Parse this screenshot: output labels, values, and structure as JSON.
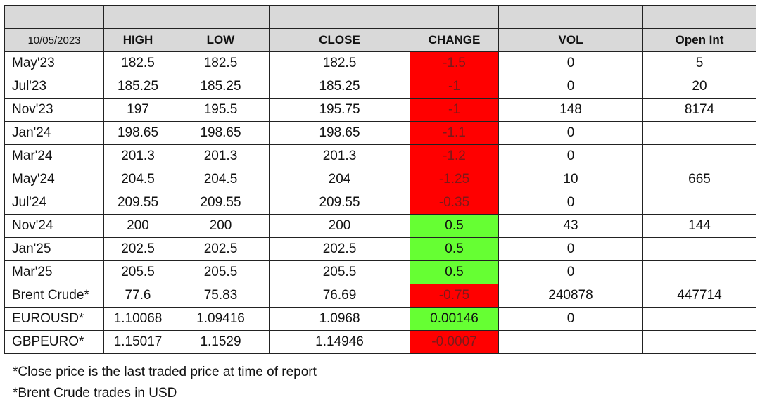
{
  "report": {
    "date": "10/05/2023",
    "headers": {
      "high": "HIGH",
      "low": "LOW",
      "close": "CLOSE",
      "change": "CHANGE",
      "vol": "VOL",
      "open_int": "Open Int"
    },
    "rows": [
      {
        "label": "May'23",
        "high": "182.5",
        "low": "182.5",
        "close": "182.5",
        "change": "-1.5",
        "vol": "0",
        "open_int": "5"
      },
      {
        "label": "Jul'23",
        "high": "185.25",
        "low": "185.25",
        "close": "185.25",
        "change": "-1",
        "vol": "0",
        "open_int": "20"
      },
      {
        "label": "Nov'23",
        "high": "197",
        "low": "195.5",
        "close": "195.75",
        "change": "-1",
        "vol": "148",
        "open_int": "8174"
      },
      {
        "label": "Jan'24",
        "high": "198.65",
        "low": "198.65",
        "close": "198.65",
        "change": "-1.1",
        "vol": "0",
        "open_int": ""
      },
      {
        "label": "Mar'24",
        "high": "201.3",
        "low": "201.3",
        "close": "201.3",
        "change": "-1.2",
        "vol": "0",
        "open_int": ""
      },
      {
        "label": "May'24",
        "high": "204.5",
        "low": "204.5",
        "close": "204",
        "change": "-1.25",
        "vol": "10",
        "open_int": "665"
      },
      {
        "label": "Jul'24",
        "high": "209.55",
        "low": "209.55",
        "close": "209.55",
        "change": "-0.35",
        "vol": "0",
        "open_int": ""
      },
      {
        "label": "Nov'24",
        "high": "200",
        "low": "200",
        "close": "200",
        "change": "0.5",
        "vol": "43",
        "open_int": "144"
      },
      {
        "label": "Jan'25",
        "high": "202.5",
        "low": "202.5",
        "close": "202.5",
        "change": "0.5",
        "vol": "0",
        "open_int": ""
      },
      {
        "label": "Mar'25",
        "high": "205.5",
        "low": "205.5",
        "close": "205.5",
        "change": "0.5",
        "vol": "0",
        "open_int": ""
      },
      {
        "label": "Brent Crude*",
        "high": "77.6",
        "low": "75.83",
        "close": "76.69",
        "change": "-0.75",
        "vol": "240878",
        "open_int": "447714"
      },
      {
        "label": "EUROUSD*",
        "high": "1.10068",
        "low": "1.09416",
        "close": "1.0968",
        "change": "0.00146",
        "vol": "0",
        "open_int": ""
      },
      {
        "label": "GBPEURO*",
        "high": "1.15017",
        "low": "1.1529",
        "close": "1.14946",
        "change": "-0.0007",
        "vol": "",
        "open_int": ""
      }
    ]
  },
  "notes": {
    "line1": "*Close price is the last traded price at time of report",
    "line2": "*Brent Crude trades in USD"
  },
  "colors": {
    "negative": "#ff0000",
    "positive": "#66ff33",
    "header_bg": "#d9d9d9"
  }
}
